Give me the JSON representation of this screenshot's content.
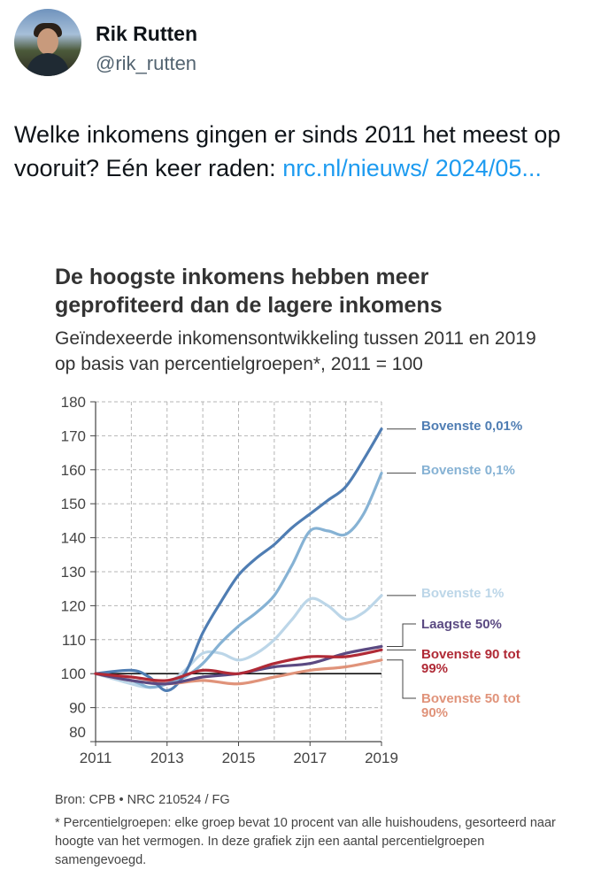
{
  "author": {
    "name": "Rik Rutten",
    "handle": "@rik_rutten",
    "avatar_icon": "profile-photo"
  },
  "tweet": {
    "text": "Welke inkomens gingen er sinds 2011 het meest op vooruit? Eén keer raden: ",
    "link_text": "nrc.nl/nieuws/ 2024/05..."
  },
  "chart_data": {
    "type": "line",
    "title": "De hoogste inkomens hebben meer geprofiteerd dan de lagere inkomens",
    "subtitle": "Geïndexeerde inkomensontwikkeling tussen 2011 en 2019 op basis van percentielgroepen*, 2011 = 100",
    "x_ticks": [
      "2011",
      "2013",
      "2015",
      "2017",
      "2019"
    ],
    "xlim": [
      2011,
      2019
    ],
    "y_ticks": [
      "80",
      "90",
      "100",
      "110",
      "120",
      "130",
      "140",
      "150",
      "160",
      "170",
      "180"
    ],
    "ylim": [
      80,
      180
    ],
    "reference_line": 100,
    "grid": true,
    "series": [
      {
        "name": "Bovenste 0,01%",
        "color": "#4f7db3",
        "x": [
          2011,
          2012,
          2012.5,
          2013,
          2013.5,
          2014,
          2014.5,
          2015,
          2015.5,
          2016,
          2016.5,
          2017,
          2017.5,
          2018,
          2018.5,
          2019
        ],
        "y": [
          100,
          101,
          99,
          95,
          100,
          112,
          121,
          129,
          134,
          138,
          143,
          147,
          151,
          155,
          163,
          172
        ]
      },
      {
        "name": "Bovenste 0,1%",
        "color": "#86b2d4",
        "x": [
          2011,
          2012,
          2012.5,
          2013,
          2013.5,
          2014,
          2014.5,
          2015,
          2015.5,
          2016,
          2016.5,
          2017,
          2017.5,
          2018,
          2018.5,
          2019
        ],
        "y": [
          100,
          98,
          96,
          97,
          99,
          103,
          109,
          114,
          118,
          123,
          132,
          142,
          142,
          141,
          147,
          159
        ]
      },
      {
        "name": "Bovenste 1%",
        "color": "#bcd6e8",
        "x": [
          2011,
          2012,
          2012.5,
          2013,
          2013.5,
          2014,
          2014.5,
          2015,
          2015.5,
          2016,
          2016.5,
          2017,
          2017.5,
          2018,
          2018.5,
          2019
        ],
        "y": [
          100,
          97,
          96,
          97,
          101,
          106,
          106,
          104,
          106,
          110,
          116,
          122,
          120,
          116,
          118,
          123
        ]
      },
      {
        "name": "Laagste 50%",
        "color": "#5b4a82",
        "x": [
          2011,
          2012,
          2013,
          2014,
          2015,
          2016,
          2017,
          2018,
          2019
        ],
        "y": [
          100,
          98,
          97,
          99,
          100,
          102,
          103,
          106,
          108
        ]
      },
      {
        "name": "Bovenste 90 tot 99%",
        "color": "#b02a36",
        "x": [
          2011,
          2012,
          2013,
          2014,
          2015,
          2016,
          2017,
          2018,
          2019
        ],
        "y": [
          100,
          99,
          98,
          101,
          100,
          103,
          105,
          105,
          107
        ]
      },
      {
        "name": "Bovenste 50 tot 90%",
        "color": "#e0937a",
        "x": [
          2011,
          2012,
          2013,
          2014,
          2015,
          2016,
          2017,
          2018,
          2019
        ],
        "y": [
          100,
          98,
          97,
          98,
          97,
          99,
          101,
          102,
          104
        ]
      }
    ],
    "source": "Bron: CPB • NRC 210524 / FG",
    "footnote": "* Percentielgroepen: elke groep bevat 10 procent van alle huishoudens, gesorteerd naar hoogte van het vermogen. In deze grafiek zijn een aantal percentielgroepen samengevoegd."
  }
}
